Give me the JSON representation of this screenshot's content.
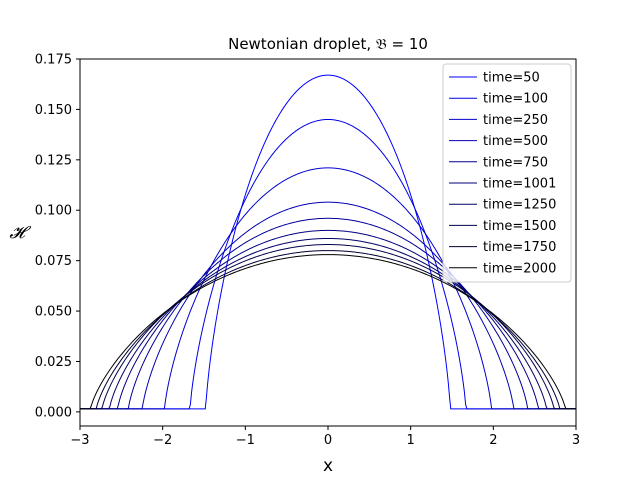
{
  "chart_data": {
    "type": "line",
    "title": "Newtonian droplet, 𝔅 = 10",
    "xlabel": "x",
    "ylabel": "𝓗",
    "xlim": [
      -3,
      3
    ],
    "ylim": [
      -0.007,
      0.175
    ],
    "x_ticks": [
      -3,
      -2,
      -1,
      0,
      1,
      2,
      3
    ],
    "x_tick_labels": [
      "−3",
      "−2",
      "−1",
      "0",
      "1",
      "2",
      "3"
    ],
    "y_ticks": [
      0.0,
      0.025,
      0.05,
      0.075,
      0.1,
      0.125,
      0.15,
      0.175
    ],
    "y_tick_labels": [
      "0.000",
      "0.025",
      "0.050",
      "0.075",
      "0.100",
      "0.125",
      "0.150",
      "0.175"
    ],
    "grid": false,
    "legend_position": "top-right",
    "film_height": 0.0015,
    "series": [
      {
        "name": "time=50",
        "color": "#0000ff",
        "peak": 0.167,
        "half_width": 1.48
      },
      {
        "name": "time=100",
        "color": "#0000e6",
        "peak": 0.145,
        "half_width": 1.67
      },
      {
        "name": "time=250",
        "color": "#0000cc",
        "peak": 0.121,
        "half_width": 1.98
      },
      {
        "name": "time=500",
        "color": "#0000b3",
        "peak": 0.104,
        "half_width": 2.25
      },
      {
        "name": "time=750",
        "color": "#000099",
        "peak": 0.096,
        "half_width": 2.42
      },
      {
        "name": "time=1001",
        "color": "#000080",
        "peak": 0.09,
        "half_width": 2.55
      },
      {
        "name": "time=1250",
        "color": "#000066",
        "peak": 0.086,
        "half_width": 2.65
      },
      {
        "name": "time=1500",
        "color": "#00004d",
        "peak": 0.083,
        "half_width": 2.74
      },
      {
        "name": "time=1750",
        "color": "#000033",
        "peak": 0.08,
        "half_width": 2.81
      },
      {
        "name": "time=2000",
        "color": "#000000",
        "peak": 0.078,
        "half_width": 2.88
      }
    ]
  }
}
